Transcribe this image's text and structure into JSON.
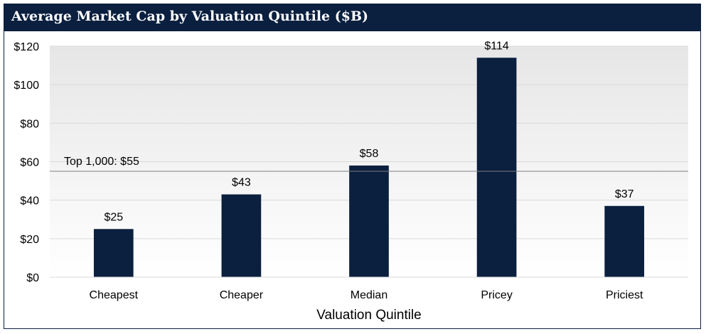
{
  "chart_data": {
    "type": "bar",
    "title": "Average Market Cap by Valuation Quintile ($B)",
    "xlabel": "Valuation Quintile",
    "ylabel": "",
    "categories": [
      "Cheapest",
      "Cheaper",
      "Median",
      "Pricey",
      "Priciest"
    ],
    "values": [
      25,
      43,
      58,
      114,
      37
    ],
    "data_labels": [
      "$25",
      "$43",
      "$58",
      "$114",
      "$37"
    ],
    "ylim": [
      0,
      120
    ],
    "yticks": [
      0,
      20,
      40,
      60,
      80,
      100,
      120
    ],
    "ytick_labels": [
      "$0",
      "$20",
      "$40",
      "$60",
      "$80",
      "$100",
      "$120"
    ],
    "reference_line": {
      "value": 55,
      "label": "Top 1,000: $55"
    },
    "grid": true,
    "legend": "none",
    "colors": {
      "bar": "#0b1f3f",
      "title_bar": "#0b1f3f",
      "gridline": "#d9d9d9",
      "plot_gradient_top": "#e6e6e6",
      "plot_gradient_bottom": "#ffffff",
      "reference_line": "#7f7f7f"
    }
  }
}
